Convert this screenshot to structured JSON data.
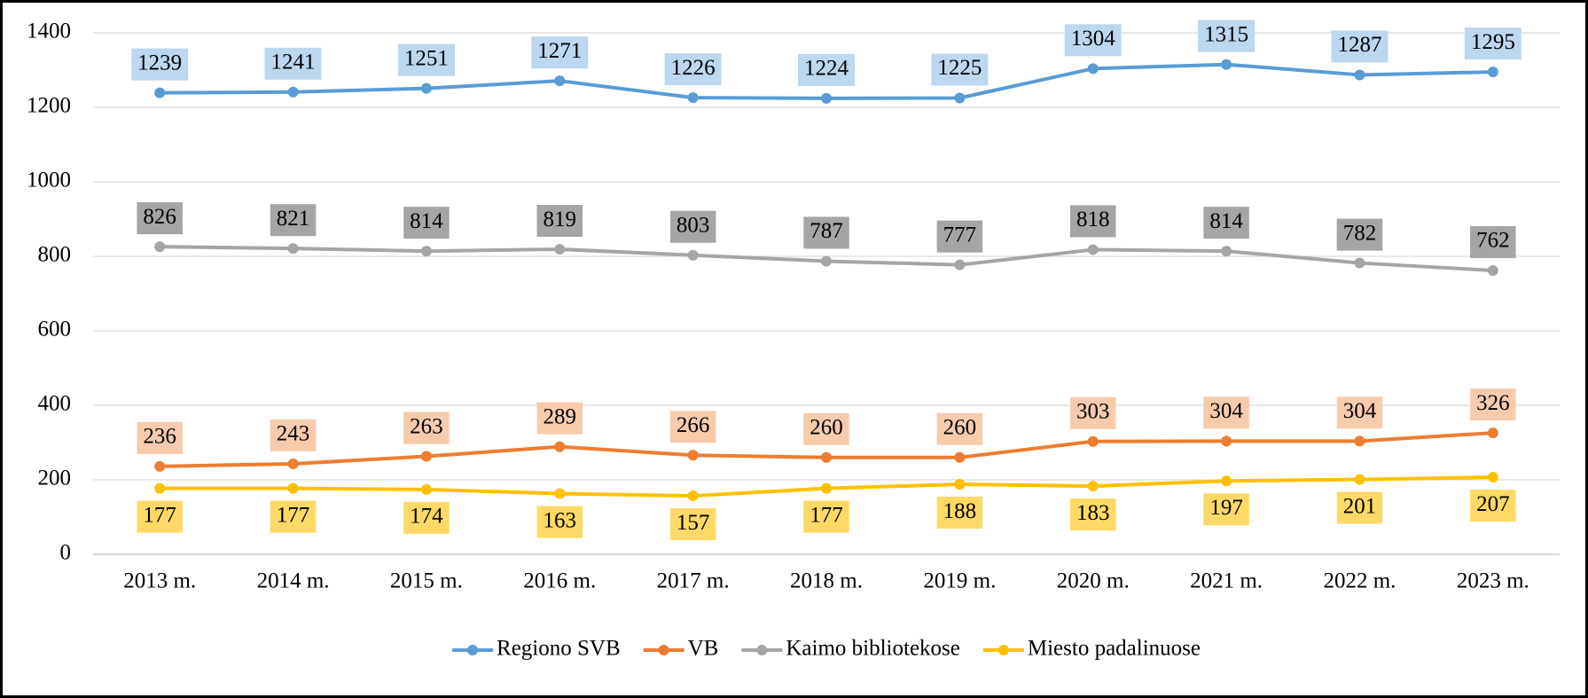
{
  "chart_data": {
    "type": "line",
    "categories": [
      "2013 m.",
      "2014 m.",
      "2015 m.",
      "2016 m.",
      "2017 m.",
      "2018 m.",
      "2019 m.",
      "2020 m.",
      "2021 m.",
      "2022 m.",
      "2023 m."
    ],
    "series": [
      {
        "name": "Regiono SVB",
        "color": "#5b9bd5",
        "values": [
          1239,
          1241,
          1251,
          1271,
          1226,
          1224,
          1225,
          1304,
          1315,
          1287,
          1295
        ]
      },
      {
        "name": "VB",
        "color": "#ed7d31",
        "values": [
          236,
          243,
          263,
          289,
          266,
          260,
          260,
          303,
          304,
          304,
          326
        ]
      },
      {
        "name": "Kaimo bibliotekose",
        "color": "#a5a5a5",
        "values": [
          826,
          821,
          814,
          819,
          803,
          787,
          777,
          818,
          814,
          782,
          762
        ]
      },
      {
        "name": "Miesto padalinuose",
        "color": "#ffc000",
        "values": [
          177,
          177,
          174,
          163,
          157,
          177,
          188,
          183,
          197,
          201,
          207
        ]
      }
    ],
    "ylim": [
      0,
      1400
    ],
    "yticks": [
      0,
      200,
      400,
      600,
      800,
      1000,
      1200,
      1400
    ],
    "grid": true,
    "legend": "bottom"
  }
}
